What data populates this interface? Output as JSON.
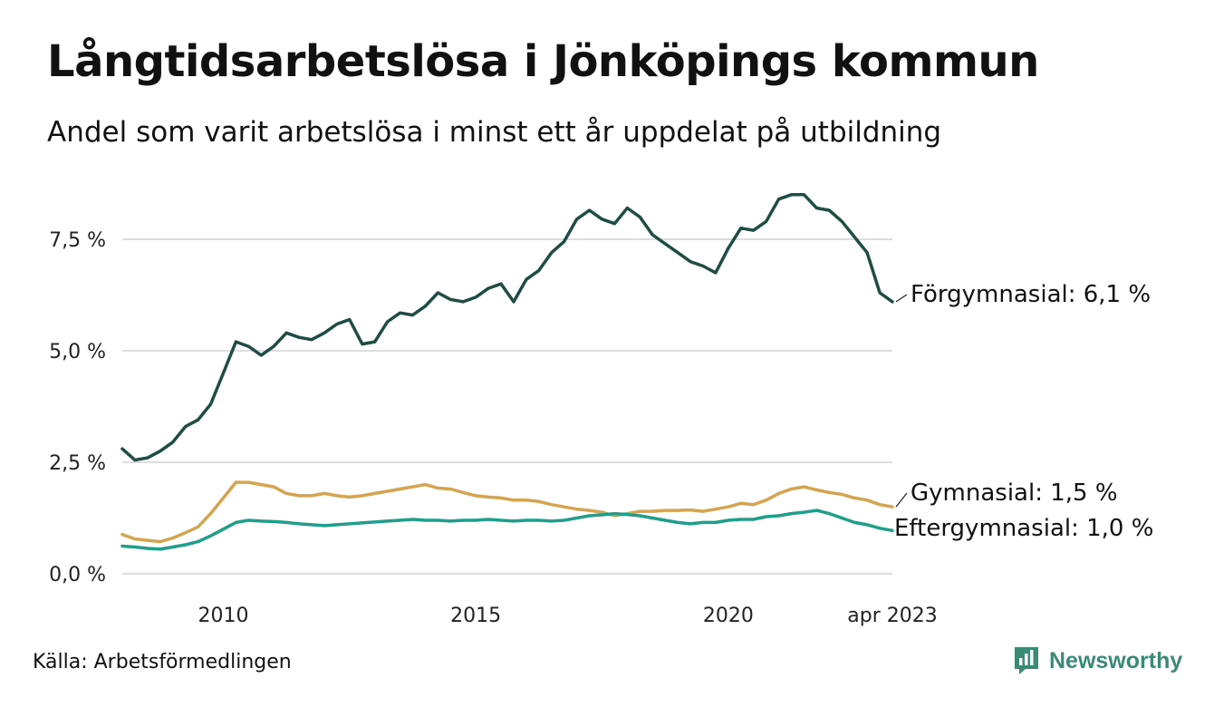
{
  "title": "Långtidsarbetslösa i Jönköpings kommun",
  "subtitle": "Andel som varit arbetslösa i minst ett år uppdelat på utbildning",
  "source": "Källa: Arbetsförmedlingen",
  "brand": {
    "name": "Newsworthy",
    "icon": "newsworthy-logo-icon",
    "color": "#3a8a75"
  },
  "chart_data": {
    "type": "line",
    "title": "",
    "xlabel": "",
    "ylabel": "",
    "ylim": [
      0,
      8.8
    ],
    "xlim": [
      2008.0,
      2023.25
    ],
    "grid": true,
    "y_ticks": [
      0,
      2.5,
      5.0,
      7.5
    ],
    "y_tick_labels": [
      "0,0 %",
      "2,5 %",
      "5,0 %",
      "7,5 %"
    ],
    "x_ticks": [
      2010,
      2015,
      2020,
      2023.25
    ],
    "x_tick_labels": [
      "2010",
      "2015",
      "2020",
      "apr 2023"
    ],
    "series": [
      {
        "name": "Förgymnasial",
        "end_label": "Förgymnasial: 6,1 %",
        "color": "#1e4d44",
        "x": [
          2008.0,
          2008.25,
          2008.5,
          2008.75,
          2009.0,
          2009.25,
          2009.5,
          2009.75,
          2010.0,
          2010.25,
          2010.5,
          2010.75,
          2011.0,
          2011.25,
          2011.5,
          2011.75,
          2012.0,
          2012.25,
          2012.5,
          2012.75,
          2013.0,
          2013.25,
          2013.5,
          2013.75,
          2014.0,
          2014.25,
          2014.5,
          2014.75,
          2015.0,
          2015.25,
          2015.5,
          2015.75,
          2016.0,
          2016.25,
          2016.5,
          2016.75,
          2017.0,
          2017.25,
          2017.5,
          2017.75,
          2018.0,
          2018.25,
          2018.5,
          2018.75,
          2019.0,
          2019.25,
          2019.5,
          2019.75,
          2020.0,
          2020.25,
          2020.5,
          2020.75,
          2021.0,
          2021.25,
          2021.5,
          2021.75,
          2022.0,
          2022.25,
          2022.5,
          2022.75,
          2023.0,
          2023.25
        ],
        "values": [
          2.8,
          2.55,
          2.6,
          2.75,
          2.95,
          3.3,
          3.45,
          3.8,
          4.5,
          5.2,
          5.1,
          4.9,
          5.1,
          5.4,
          5.3,
          5.25,
          5.4,
          5.6,
          5.7,
          5.15,
          5.2,
          5.65,
          5.85,
          5.8,
          6.0,
          6.3,
          6.15,
          6.1,
          6.2,
          6.4,
          6.5,
          6.1,
          6.6,
          6.8,
          7.2,
          7.45,
          7.95,
          8.15,
          7.95,
          7.85,
          8.2,
          8.0,
          7.6,
          7.4,
          7.2,
          7.0,
          6.9,
          6.75,
          7.3,
          7.75,
          7.7,
          7.9,
          8.4,
          8.5,
          8.5,
          8.2,
          8.15,
          7.9,
          7.55,
          7.2,
          6.3,
          6.1
        ]
      },
      {
        "name": "Gymnasial",
        "end_label": "Gymnasial: 1,5 %",
        "color": "#d4a450",
        "x": [
          2008.0,
          2008.25,
          2008.5,
          2008.75,
          2009.0,
          2009.25,
          2009.5,
          2009.75,
          2010.0,
          2010.25,
          2010.5,
          2010.75,
          2011.0,
          2011.25,
          2011.5,
          2011.75,
          2012.0,
          2012.25,
          2012.5,
          2012.75,
          2013.0,
          2013.25,
          2013.5,
          2013.75,
          2014.0,
          2014.25,
          2014.5,
          2014.75,
          2015.0,
          2015.25,
          2015.5,
          2015.75,
          2016.0,
          2016.25,
          2016.5,
          2016.75,
          2017.0,
          2017.25,
          2017.5,
          2017.75,
          2018.0,
          2018.25,
          2018.5,
          2018.75,
          2019.0,
          2019.25,
          2019.5,
          2019.75,
          2020.0,
          2020.25,
          2020.5,
          2020.75,
          2021.0,
          2021.25,
          2021.5,
          2021.75,
          2022.0,
          2022.25,
          2022.5,
          2022.75,
          2023.0,
          2023.25
        ],
        "values": [
          0.88,
          0.78,
          0.75,
          0.72,
          0.8,
          0.92,
          1.05,
          1.35,
          1.7,
          2.05,
          2.05,
          2.0,
          1.95,
          1.8,
          1.75,
          1.75,
          1.8,
          1.75,
          1.72,
          1.75,
          1.8,
          1.85,
          1.9,
          1.95,
          2.0,
          1.92,
          1.9,
          1.82,
          1.75,
          1.72,
          1.7,
          1.65,
          1.65,
          1.62,
          1.55,
          1.5,
          1.45,
          1.42,
          1.38,
          1.3,
          1.35,
          1.4,
          1.4,
          1.42,
          1.42,
          1.43,
          1.4,
          1.45,
          1.5,
          1.58,
          1.55,
          1.65,
          1.8,
          1.9,
          1.95,
          1.88,
          1.82,
          1.78,
          1.7,
          1.65,
          1.55,
          1.5
        ]
      },
      {
        "name": "Eftergymnasial",
        "end_label": "Eftergymnasial: 1,0 %",
        "color": "#1f9e89",
        "x": [
          2008.0,
          2008.25,
          2008.5,
          2008.75,
          2009.0,
          2009.25,
          2009.5,
          2009.75,
          2010.0,
          2010.25,
          2010.5,
          2010.75,
          2011.0,
          2011.25,
          2011.5,
          2011.75,
          2012.0,
          2012.25,
          2012.5,
          2012.75,
          2013.0,
          2013.25,
          2013.5,
          2013.75,
          2014.0,
          2014.25,
          2014.5,
          2014.75,
          2015.0,
          2015.25,
          2015.5,
          2015.75,
          2016.0,
          2016.25,
          2016.5,
          2016.75,
          2017.0,
          2017.25,
          2017.5,
          2017.75,
          2018.0,
          2018.25,
          2018.5,
          2018.75,
          2019.0,
          2019.25,
          2019.5,
          2019.75,
          2020.0,
          2020.25,
          2020.5,
          2020.75,
          2021.0,
          2021.25,
          2021.5,
          2021.75,
          2022.0,
          2022.25,
          2022.5,
          2022.75,
          2023.0,
          2023.25
        ],
        "values": [
          0.62,
          0.6,
          0.57,
          0.55,
          0.6,
          0.65,
          0.72,
          0.85,
          1.0,
          1.15,
          1.2,
          1.18,
          1.17,
          1.15,
          1.12,
          1.1,
          1.08,
          1.1,
          1.12,
          1.14,
          1.16,
          1.18,
          1.2,
          1.22,
          1.2,
          1.2,
          1.18,
          1.2,
          1.2,
          1.22,
          1.2,
          1.18,
          1.2,
          1.2,
          1.18,
          1.2,
          1.25,
          1.3,
          1.32,
          1.35,
          1.33,
          1.3,
          1.25,
          1.2,
          1.15,
          1.12,
          1.15,
          1.15,
          1.2,
          1.22,
          1.22,
          1.28,
          1.3,
          1.35,
          1.38,
          1.42,
          1.35,
          1.25,
          1.15,
          1.1,
          1.02,
          0.97
        ]
      }
    ]
  }
}
